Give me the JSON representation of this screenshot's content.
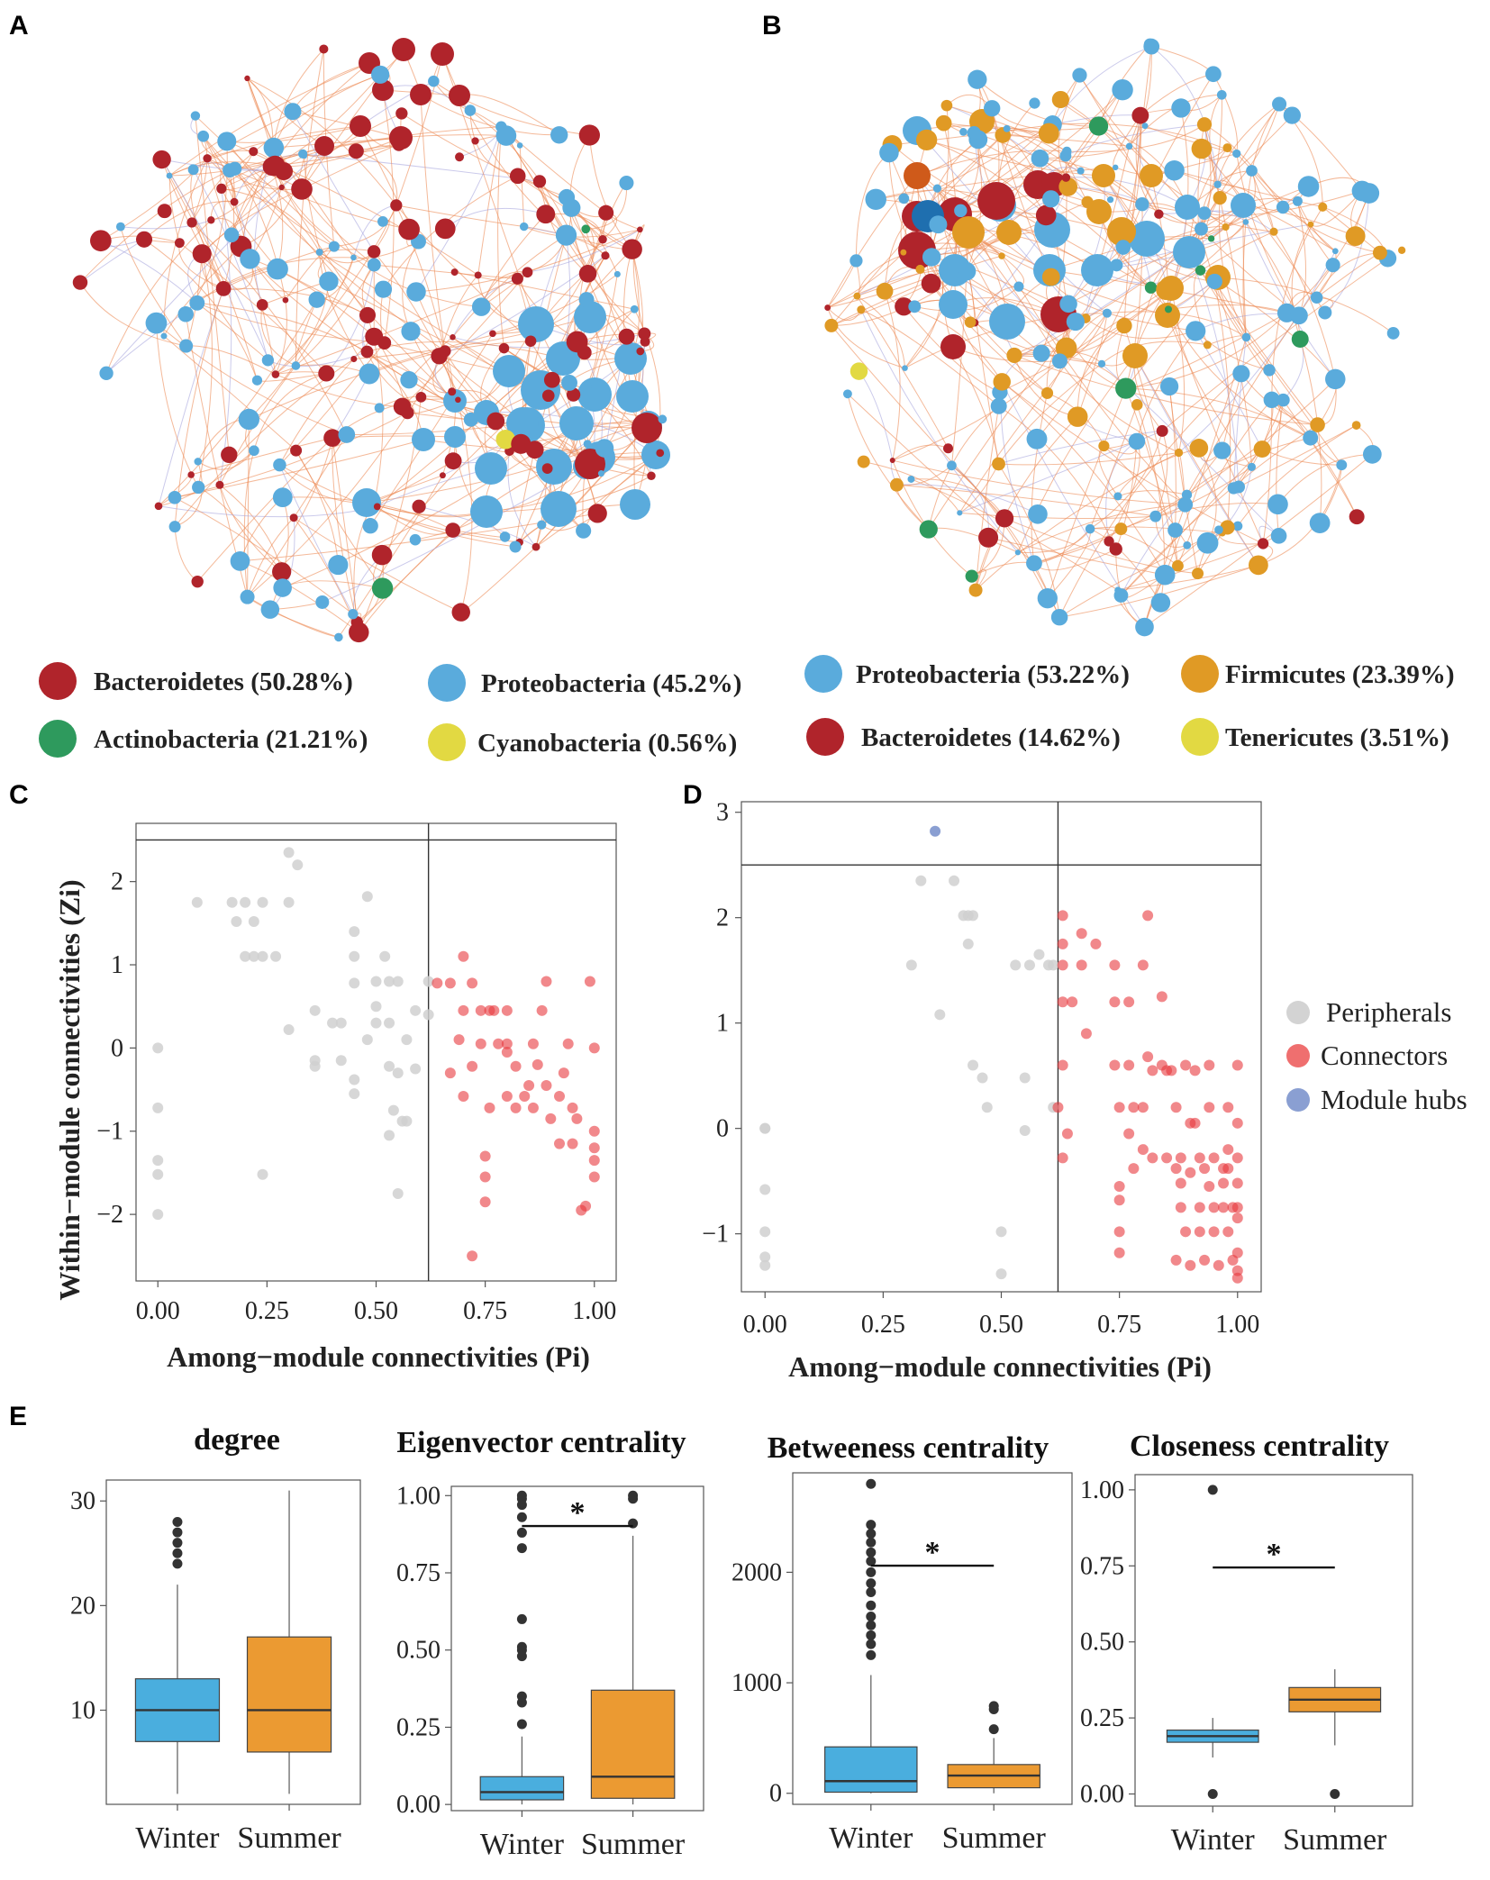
{
  "panels": {
    "a": "A",
    "b": "B",
    "c": "C",
    "d": "D",
    "e": "E"
  },
  "colors": {
    "bacteroidetes": "#b0242b",
    "proteobacteria": "#5aabdc",
    "actinobacteria": "#2e9a5d",
    "cyanobacteria": "#e2d942",
    "firmicutes": "#e09a25",
    "tenericutes": "#e2d942",
    "peripheral": "#cfcfcf",
    "connector": "#ef6f6f",
    "hub": "#8a9fd2",
    "edge": "#ec8a55",
    "winter": "#4aaede",
    "summer": "#eb9a32"
  },
  "network_legend": {
    "winter": [
      {
        "label": "Bacteroidetes (50.28%)",
        "color": "#b0242b"
      },
      {
        "label": "Proteobacteria (45.2%)",
        "color": "#5aabdc"
      },
      {
        "label": "Actinobacteria (21.21%)",
        "color": "#2e9a5d"
      },
      {
        "label": "Cyanobacteria (0.56%)",
        "color": "#e2d942"
      }
    ],
    "summer": [
      {
        "label": "Proteobacteria (53.22%)",
        "color": "#5aabdc"
      },
      {
        "label": "Firmicutes (23.39%)",
        "color": "#e09a25"
      },
      {
        "label": "Bacteroidetes (14.62%)",
        "color": "#b0242b"
      },
      {
        "label": "Tenericutes (3.51%)",
        "color": "#e2d942"
      }
    ]
  },
  "chart_data": [
    {
      "id": "C",
      "type": "scatter",
      "xlabel": "Among−module connectivities (Pi)",
      "ylabel": "Within−module connectivities (Zi)",
      "xlim": [
        -0.05,
        1.05
      ],
      "ylim": [
        -2.8,
        2.7
      ],
      "xticks": [
        0,
        0.25,
        0.5,
        0.75,
        1
      ],
      "xtick_labels": [
        "0.00",
        "0.25",
        "0.50",
        "0.75",
        "1.00"
      ],
      "yticks": [
        -2,
        -1,
        0,
        1,
        2
      ],
      "ytick_labels": [
        "−2",
        "−1",
        "0",
        "1",
        "2"
      ],
      "thresholds": {
        "pi": 0.62,
        "zi": 2.5
      },
      "peripherals": [
        [
          0,
          0
        ],
        [
          0,
          -0.72
        ],
        [
          0,
          -1.35
        ],
        [
          0,
          -1.52
        ],
        [
          0,
          -2
        ],
        [
          0.09,
          1.75
        ],
        [
          0.17,
          1.75
        ],
        [
          0.18,
          1.52
        ],
        [
          0.2,
          1.75
        ],
        [
          0.22,
          1.52
        ],
        [
          0.24,
          1.75
        ],
        [
          0.2,
          1.1
        ],
        [
          0.22,
          1.1
        ],
        [
          0.24,
          1.1
        ],
        [
          0.27,
          1.1
        ],
        [
          0.24,
          -1.52
        ],
        [
          0.3,
          2.35
        ],
        [
          0.32,
          2.2
        ],
        [
          0.3,
          1.75
        ],
        [
          0.3,
          0.22
        ],
        [
          0.36,
          0.45
        ],
        [
          0.36,
          -0.15
        ],
        [
          0.36,
          -0.22
        ],
        [
          0.4,
          0.3
        ],
        [
          0.42,
          0.3
        ],
        [
          0.42,
          -0.15
        ],
        [
          0.45,
          1.4
        ],
        [
          0.45,
          1.1
        ],
        [
          0.45,
          0.78
        ],
        [
          0.45,
          -0.38
        ],
        [
          0.45,
          -0.55
        ],
        [
          0.48,
          1.82
        ],
        [
          0.48,
          0.1
        ],
        [
          0.5,
          0.3
        ],
        [
          0.5,
          0.8
        ],
        [
          0.5,
          0.5
        ],
        [
          0.52,
          1.1
        ],
        [
          0.53,
          0.8
        ],
        [
          0.53,
          0.3
        ],
        [
          0.53,
          -0.22
        ],
        [
          0.55,
          0.8
        ],
        [
          0.55,
          -0.3
        ],
        [
          0.54,
          -0.75
        ],
        [
          0.56,
          -0.88
        ],
        [
          0.57,
          -0.88
        ],
        [
          0.57,
          0.1
        ],
        [
          0.53,
          -1.05
        ],
        [
          0.59,
          -0.25
        ],
        [
          0.59,
          0.45
        ],
        [
          0.62,
          0.8
        ],
        [
          0.62,
          0.4
        ],
        [
          0.55,
          -1.75
        ]
      ],
      "connectors": [
        [
          0.64,
          0.78
        ],
        [
          0.67,
          0.78
        ],
        [
          0.67,
          -0.3
        ],
        [
          0.69,
          0.1
        ],
        [
          0.7,
          0.45
        ],
        [
          0.7,
          1.1
        ],
        [
          0.72,
          0.78
        ],
        [
          0.7,
          -0.58
        ],
        [
          0.72,
          -0.22
        ],
        [
          0.74,
          0.45
        ],
        [
          0.74,
          0.05
        ],
        [
          0.76,
          0.45
        ],
        [
          0.76,
          -0.72
        ],
        [
          0.75,
          -1.3
        ],
        [
          0.75,
          -1.55
        ],
        [
          0.75,
          -1.85
        ],
        [
          0.77,
          0.45
        ],
        [
          0.78,
          0.05
        ],
        [
          0.8,
          -0.05
        ],
        [
          0.8,
          -0.58
        ],
        [
          0.8,
          0.45
        ],
        [
          0.8,
          0.05
        ],
        [
          0.82,
          -0.22
        ],
        [
          0.82,
          -0.72
        ],
        [
          0.84,
          -0.58
        ],
        [
          0.85,
          -0.45
        ],
        [
          0.86,
          0.05
        ],
        [
          0.86,
          -0.72
        ],
        [
          0.87,
          -0.2
        ],
        [
          0.88,
          0.45
        ],
        [
          0.89,
          0.8
        ],
        [
          0.89,
          -0.45
        ],
        [
          0.9,
          -0.85
        ],
        [
          0.92,
          -0.58
        ],
        [
          0.92,
          -1.15
        ],
        [
          0.93,
          -0.3
        ],
        [
          0.94,
          0.05
        ],
        [
          0.95,
          -0.72
        ],
        [
          0.95,
          -1.15
        ],
        [
          0.96,
          -0.85
        ],
        [
          0.97,
          -1.95
        ],
        [
          0.98,
          -1.9
        ],
        [
          0.99,
          0.8
        ],
        [
          1,
          0
        ],
        [
          1,
          -1
        ],
        [
          1,
          -1.2
        ],
        [
          1,
          -1.35
        ],
        [
          1,
          -1.55
        ],
        [
          0.72,
          -2.5
        ]
      ],
      "hubs": [],
      "legend": []
    },
    {
      "id": "D",
      "type": "scatter",
      "xlabel": "Among−module connectivities (Pi)",
      "ylabel": "",
      "xlim": [
        -0.05,
        1.05
      ],
      "ylim": [
        -1.55,
        3.1
      ],
      "xticks": [
        0,
        0.25,
        0.5,
        0.75,
        1
      ],
      "xtick_labels": [
        "0.00",
        "0.25",
        "0.50",
        "0.75",
        "1.00"
      ],
      "yticks": [
        -1,
        0,
        1,
        2,
        3
      ],
      "ytick_labels": [
        "−1",
        "0",
        "1",
        "2",
        "3"
      ],
      "thresholds": {
        "pi": 0.62,
        "zi": 2.5
      },
      "peripherals": [
        [
          0,
          0
        ],
        [
          0,
          0
        ],
        [
          0,
          -0.58
        ],
        [
          0,
          -0.98
        ],
        [
          0,
          -1.22
        ],
        [
          0,
          -1.3
        ],
        [
          0.31,
          1.55
        ],
        [
          0.33,
          2.35
        ],
        [
          0.37,
          1.08
        ],
        [
          0.4,
          2.35
        ],
        [
          0.42,
          2.02
        ],
        [
          0.43,
          2.02
        ],
        [
          0.43,
          1.75
        ],
        [
          0.44,
          2.02
        ],
        [
          0.44,
          0.6
        ],
        [
          0.46,
          0.48
        ],
        [
          0.47,
          0.2
        ],
        [
          0.5,
          -0.98
        ],
        [
          0.5,
          -1.38
        ],
        [
          0.53,
          1.55
        ],
        [
          0.55,
          0.48
        ],
        [
          0.55,
          -0.02
        ],
        [
          0.56,
          1.55
        ],
        [
          0.58,
          1.65
        ],
        [
          0.6,
          1.55
        ],
        [
          0.61,
          1.55
        ],
        [
          0.61,
          0.2
        ]
      ],
      "connectors": [
        [
          0.62,
          0.2
        ],
        [
          0.63,
          2.02
        ],
        [
          0.63,
          1.75
        ],
        [
          0.63,
          1.55
        ],
        [
          0.63,
          1.2
        ],
        [
          0.63,
          0.6
        ],
        [
          0.63,
          -0.28
        ],
        [
          0.64,
          -0.05
        ],
        [
          0.65,
          1.2
        ],
        [
          0.67,
          1.85
        ],
        [
          0.67,
          1.55
        ],
        [
          0.68,
          0.9
        ],
        [
          0.7,
          1.75
        ],
        [
          0.74,
          1.55
        ],
        [
          0.74,
          1.2
        ],
        [
          0.74,
          0.6
        ],
        [
          0.75,
          0.2
        ],
        [
          0.75,
          -0.55
        ],
        [
          0.75,
          -0.68
        ],
        [
          0.75,
          -0.98
        ],
        [
          0.75,
          -1.18
        ],
        [
          0.77,
          1.2
        ],
        [
          0.77,
          0.6
        ],
        [
          0.77,
          -0.05
        ],
        [
          0.78,
          0.2
        ],
        [
          0.78,
          -0.38
        ],
        [
          0.8,
          1.55
        ],
        [
          0.8,
          0.2
        ],
        [
          0.8,
          -0.2
        ],
        [
          0.81,
          2.02
        ],
        [
          0.81,
          0.68
        ],
        [
          0.82,
          0.55
        ],
        [
          0.82,
          -0.28
        ],
        [
          0.84,
          1.25
        ],
        [
          0.84,
          0.6
        ],
        [
          0.85,
          0.55
        ],
        [
          0.85,
          -0.28
        ],
        [
          0.86,
          0.55
        ],
        [
          0.87,
          0.2
        ],
        [
          0.87,
          -0.38
        ],
        [
          0.87,
          -1.25
        ],
        [
          0.88,
          -0.28
        ],
        [
          0.88,
          -0.52
        ],
        [
          0.88,
          -0.75
        ],
        [
          0.89,
          -0.98
        ],
        [
          0.89,
          0.6
        ],
        [
          0.9,
          0.05
        ],
        [
          0.9,
          -0.42
        ],
        [
          0.9,
          -1.3
        ],
        [
          0.91,
          0.55
        ],
        [
          0.91,
          0.05
        ],
        [
          0.92,
          -0.28
        ],
        [
          0.92,
          -0.75
        ],
        [
          0.92,
          -0.98
        ],
        [
          0.93,
          -0.38
        ],
        [
          0.93,
          -1.25
        ],
        [
          0.94,
          0.6
        ],
        [
          0.94,
          0.2
        ],
        [
          0.94,
          -0.55
        ],
        [
          0.95,
          -0.28
        ],
        [
          0.95,
          -0.75
        ],
        [
          0.95,
          -0.98
        ],
        [
          0.96,
          -1.3
        ],
        [
          0.97,
          -0.38
        ],
        [
          0.97,
          -0.52
        ],
        [
          0.97,
          -0.75
        ],
        [
          0.98,
          0.2
        ],
        [
          0.98,
          -0.2
        ],
        [
          0.98,
          -0.38
        ],
        [
          0.98,
          -0.98
        ],
        [
          0.99,
          -0.75
        ],
        [
          0.99,
          -1.25
        ],
        [
          1,
          0.6
        ],
        [
          1,
          0.05
        ],
        [
          1,
          -0.28
        ],
        [
          1,
          -0.52
        ],
        [
          1,
          -0.75
        ],
        [
          1,
          -0.85
        ],
        [
          1,
          -1.18
        ],
        [
          1,
          -1.35
        ],
        [
          1,
          -1.42
        ]
      ],
      "hubs": [
        [
          0.36,
          2.82
        ]
      ],
      "legend": [
        {
          "label": "Peripherals",
          "color": "#d3d3d3"
        },
        {
          "label": "Connectors",
          "color": "#ef6f6f"
        },
        {
          "label": "Module hubs",
          "color": "#8a9fd2"
        }
      ]
    },
    {
      "id": "E1",
      "type": "box",
      "title": "degree",
      "categories": [
        "Winter",
        "Summer"
      ],
      "ylim": [
        1,
        32
      ],
      "yticks": [
        10,
        20,
        30
      ],
      "ytick_labels": [
        "10",
        "20",
        "30"
      ],
      "series": [
        {
          "name": "Winter",
          "whisker_low": 2,
          "q1": 7,
          "median": 10,
          "q3": 13,
          "whisker_high": 22,
          "outliers": [
            24,
            25,
            26,
            27,
            28
          ]
        },
        {
          "name": "Summer",
          "whisker_low": 2,
          "q1": 6,
          "median": 10,
          "q3": 17,
          "whisker_high": 31,
          "outliers": []
        }
      ],
      "significance": ""
    },
    {
      "id": "E2",
      "type": "box",
      "title": "Eigenvector centrality",
      "categories": [
        "Winter",
        "Summer"
      ],
      "ylim": [
        -0.02,
        1.03
      ],
      "yticks": [
        0,
        0.25,
        0.5,
        0.75,
        1
      ],
      "ytick_labels": [
        "0.00",
        "0.25",
        "0.50",
        "0.75",
        "1.00"
      ],
      "series": [
        {
          "name": "Winter",
          "whisker_low": 0,
          "q1": 0.015,
          "median": 0.04,
          "q3": 0.09,
          "whisker_high": 0.22,
          "outliers": [
            0.26,
            0.33,
            0.35,
            0.48,
            0.5,
            0.51,
            0.6,
            0.83,
            0.88,
            0.93,
            0.97,
            0.99,
            1.0
          ]
        },
        {
          "name": "Summer",
          "whisker_low": 0,
          "q1": 0.02,
          "median": 0.09,
          "q3": 0.37,
          "whisker_high": 0.87,
          "outliers": [
            0.91,
            0.99,
            1.0
          ]
        }
      ],
      "significance": "*"
    },
    {
      "id": "E3",
      "type": "box",
      "title": "Betweeness centrality",
      "categories": [
        "Winter",
        "Summer"
      ],
      "ylim": [
        -100,
        2900
      ],
      "yticks": [
        0,
        1000,
        2000
      ],
      "ytick_labels": [
        "0",
        "1000",
        "2000"
      ],
      "series": [
        {
          "name": "Winter",
          "whisker_low": 0,
          "q1": 10,
          "median": 110,
          "q3": 420,
          "whisker_high": 1070,
          "outliers": [
            1250,
            1350,
            1430,
            1520,
            1600,
            1700,
            1820,
            1900,
            2000,
            2100,
            2180,
            2270,
            2350,
            2430,
            2800
          ]
        },
        {
          "name": "Summer",
          "whisker_low": 0,
          "q1": 50,
          "median": 160,
          "q3": 260,
          "whisker_high": 500,
          "outliers": [
            580,
            760,
            790
          ]
        }
      ],
      "significance": "*"
    },
    {
      "id": "E4",
      "type": "box",
      "title": "Closeness centrality",
      "categories": [
        "Winter",
        "Summer"
      ],
      "ylim": [
        -0.04,
        1.05
      ],
      "yticks": [
        0,
        0.25,
        0.5,
        0.75,
        1
      ],
      "ytick_labels": [
        "0.00",
        "0.25",
        "0.50",
        "0.75",
        "1.00"
      ],
      "series": [
        {
          "name": "Winter",
          "whisker_low": 0.12,
          "q1": 0.17,
          "median": 0.19,
          "q3": 0.21,
          "whisker_high": 0.25,
          "outliers": [
            0.0,
            1.0
          ]
        },
        {
          "name": "Summer",
          "whisker_low": 0.16,
          "q1": 0.27,
          "median": 0.31,
          "q3": 0.35,
          "whisker_high": 0.41,
          "outliers": [
            0.0
          ]
        }
      ],
      "significance": "*"
    }
  ]
}
